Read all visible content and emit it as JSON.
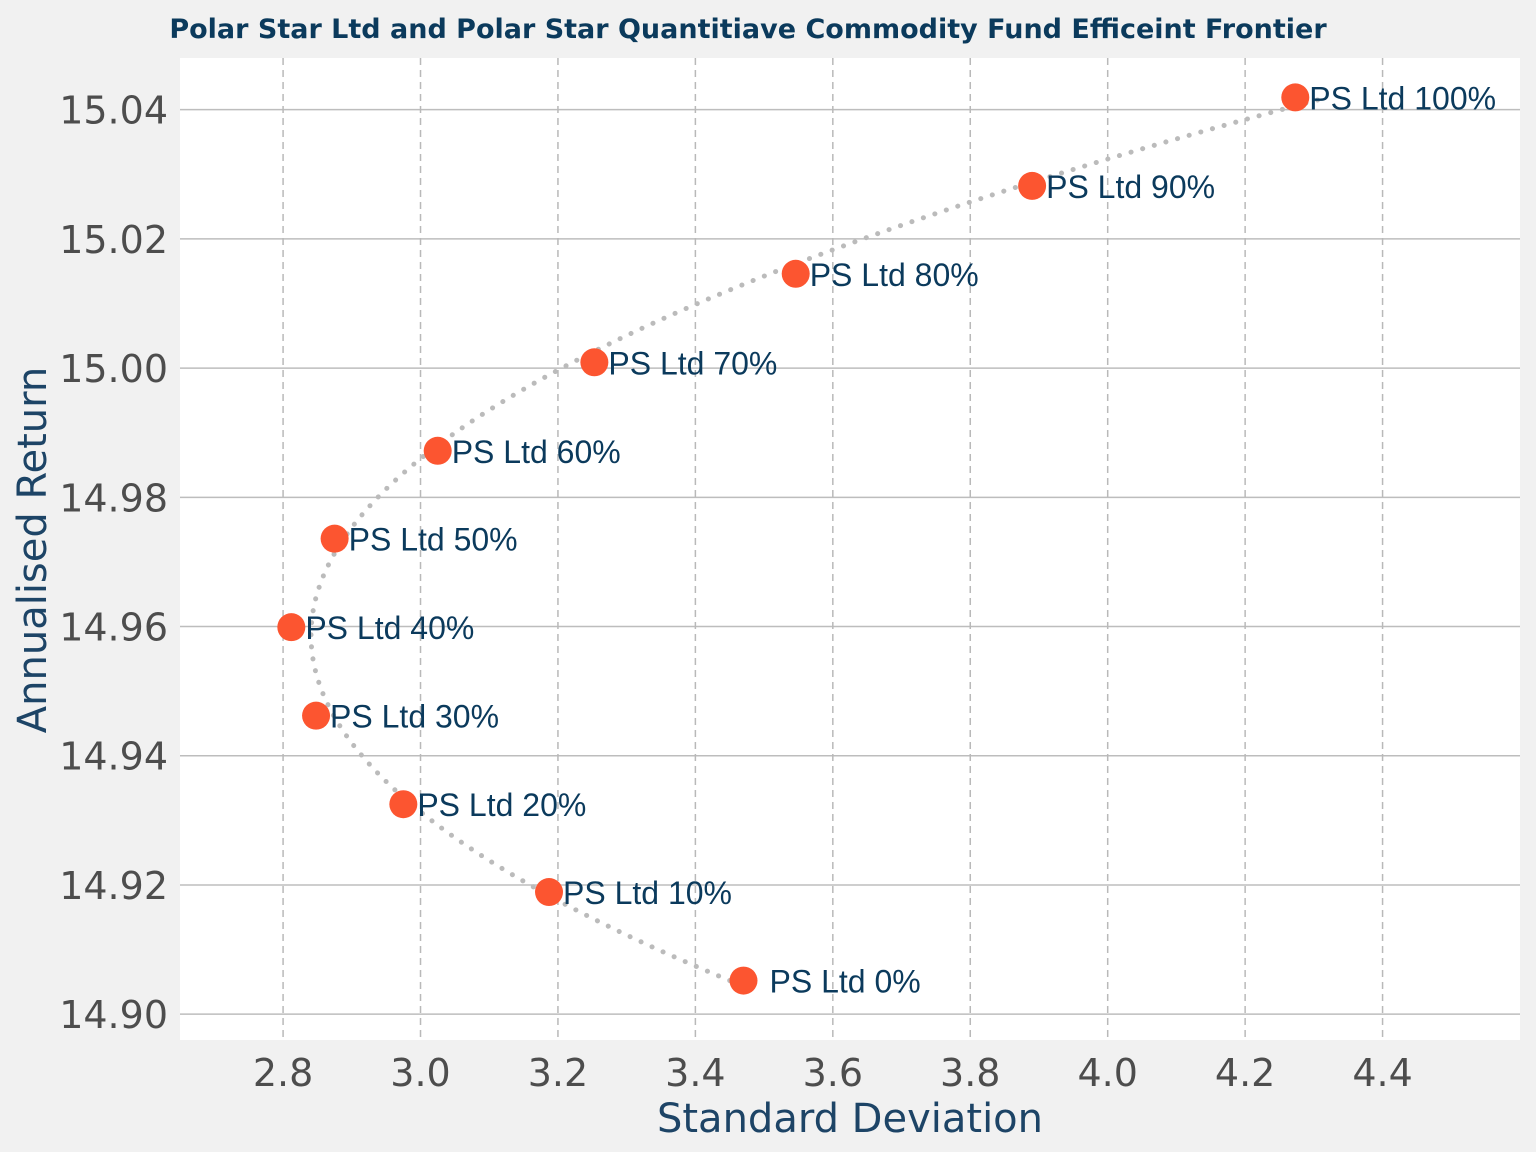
{
  "chart_data": {
    "type": "scatter",
    "title": "Polar Star Ltd and Polar Star Quantitiave Commodity Fund Efficeint Frontier",
    "xlabel": "Standard Deviation",
    "ylabel": "Annualised Return",
    "xlim": [
      2.65,
      4.6
    ],
    "ylim": [
      14.896,
      15.048
    ],
    "x_ticks": [
      2.8,
      3.0,
      3.2,
      3.4,
      3.6,
      3.8,
      4.0,
      4.2,
      4.4
    ],
    "x_tick_labels": [
      "2.8",
      "3.0",
      "3.2",
      "3.4",
      "3.6",
      "3.8",
      "4.0",
      "4.2",
      "4.4"
    ],
    "y_ticks": [
      14.9,
      14.92,
      14.94,
      14.96,
      14.98,
      15.0,
      15.02,
      15.04
    ],
    "y_tick_labels": [
      "14.90",
      "14.92",
      "14.94",
      "14.96",
      "14.98",
      "15.00",
      "15.02",
      "15.04"
    ],
    "grid": true,
    "points": [
      {
        "label": "PS Ltd 0%",
        "x": 3.47,
        "y": 14.9052
      },
      {
        "label": "PS Ltd 10%",
        "x": 3.187,
        "y": 14.9189
      },
      {
        "label": "PS Ltd 20%",
        "x": 2.975,
        "y": 14.9325
      },
      {
        "label": "PS Ltd 30%",
        "x": 2.848,
        "y": 14.9462
      },
      {
        "label": "PS Ltd 40%",
        "x": 2.812,
        "y": 14.9599
      },
      {
        "label": "PS Ltd 50%",
        "x": 2.875,
        "y": 14.9736
      },
      {
        "label": "PS Ltd 60%",
        "x": 3.025,
        "y": 14.9872
      },
      {
        "label": "PS Ltd 70%",
        "x": 3.253,
        "y": 15.0009
      },
      {
        "label": "PS Ltd 80%",
        "x": 3.546,
        "y": 15.0146
      },
      {
        "label": "PS Ltd 90%",
        "x": 3.89,
        "y": 15.0282
      },
      {
        "label": "PS Ltd 100%",
        "x": 4.273,
        "y": 15.0419
      }
    ]
  },
  "colors": {
    "background": "#f1f1f1",
    "plot_background": "#ffffff",
    "point": "#fc5530",
    "frontier_curve": "#bbbbbb",
    "label_text": "#0b3a5c",
    "title_text": "#0b3a5c",
    "axis_title": "#1d4466",
    "tick_text": "#4d4d4d",
    "grid_major": "#bdbdbd",
    "grid_vertical": "#b9b9b9"
  }
}
